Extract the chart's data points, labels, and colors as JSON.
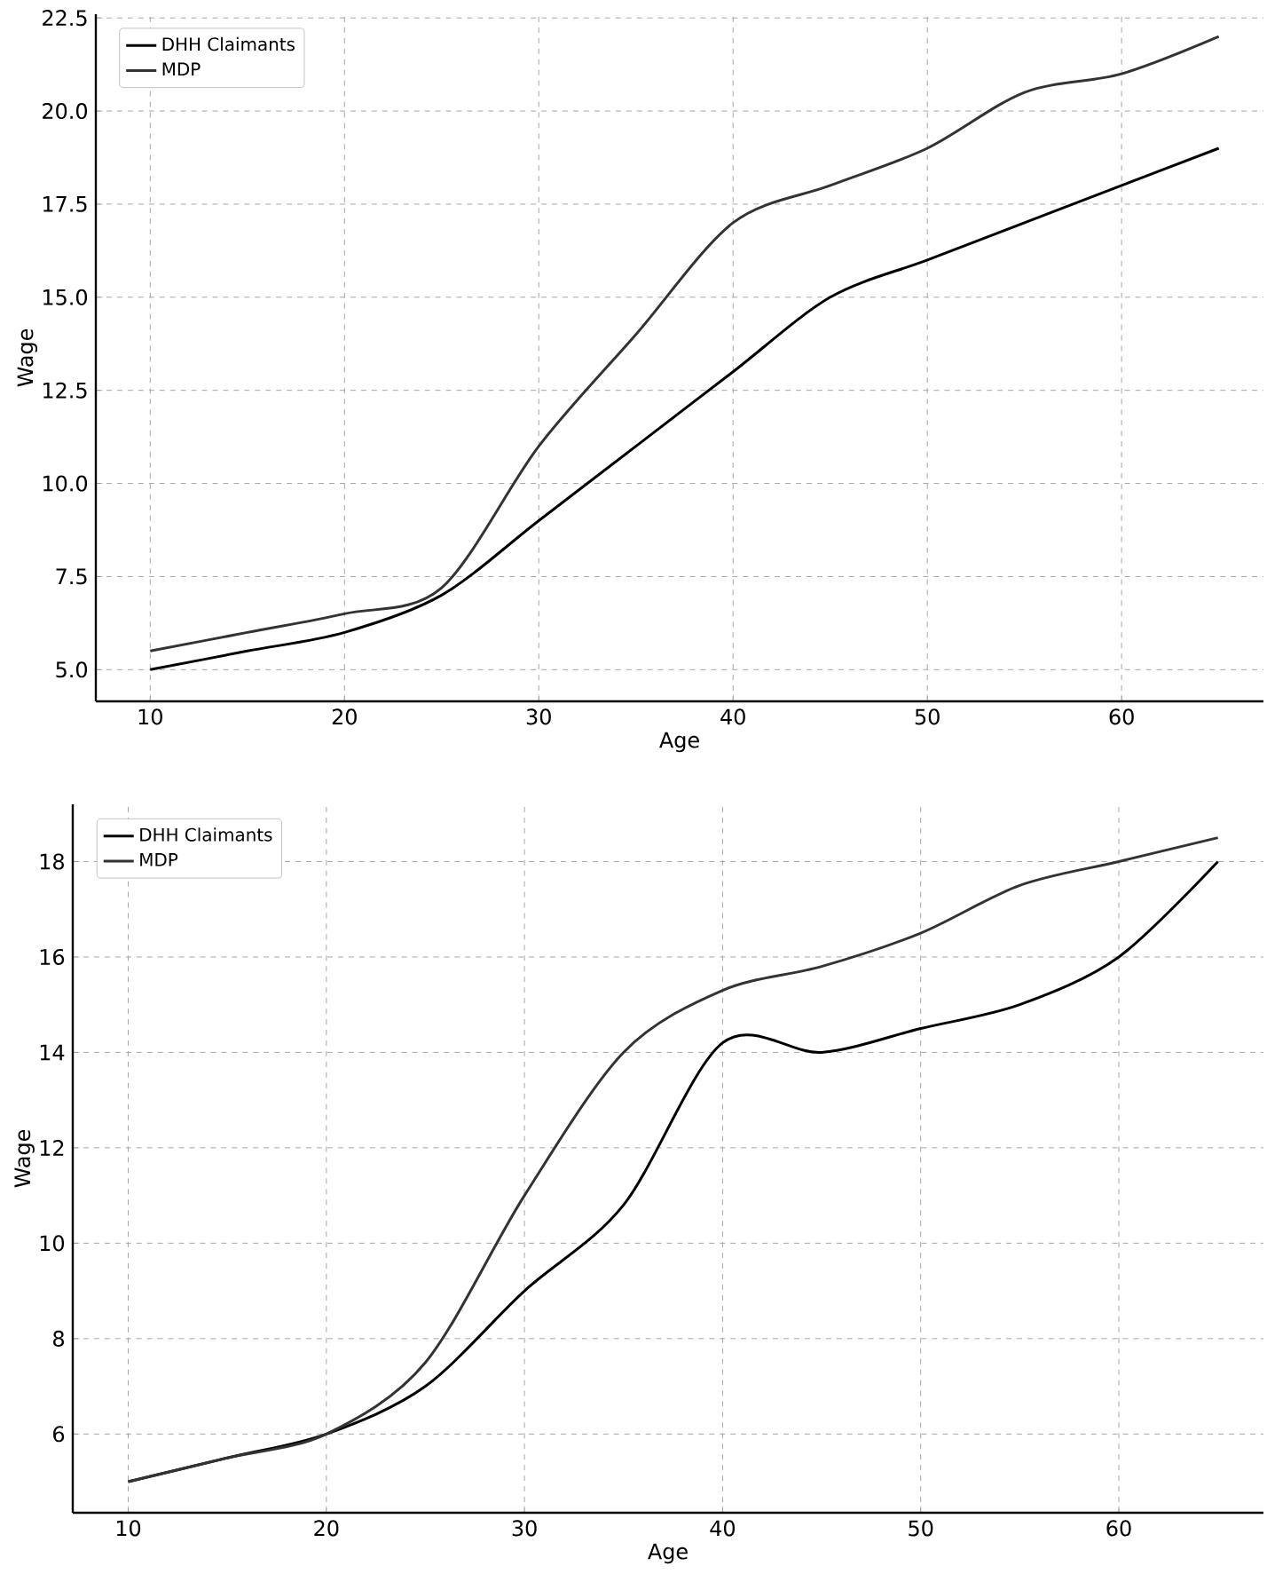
{
  "chart_data": [
    {
      "type": "line",
      "xlabel": "Age",
      "ylabel": "Wage",
      "x": [
        10,
        15,
        20,
        25,
        30,
        35,
        40,
        45,
        50,
        55,
        60,
        65
      ],
      "series": [
        {
          "name": "DHH Claimants",
          "color": "#000000",
          "values": [
            5,
            5.5,
            6,
            7,
            9,
            11,
            13,
            15,
            16,
            17,
            18,
            19
          ]
        },
        {
          "name": "MDP",
          "color": "#333333",
          "values": [
            5.5,
            6,
            6.5,
            7.2,
            11,
            14,
            17,
            18,
            19,
            20.5,
            21,
            22
          ]
        }
      ],
      "xlim": [
        7.2,
        67.3
      ],
      "ylim": [
        4.15,
        22.6
      ],
      "xticks": [
        10,
        20,
        30,
        40,
        50,
        60
      ],
      "yticks": [
        {
          "value": 5,
          "label": "5.0"
        },
        {
          "value": 7.5,
          "label": "7.5"
        },
        {
          "value": 10,
          "label": "10.0"
        },
        {
          "value": 12.5,
          "label": "12.5"
        },
        {
          "value": 15,
          "label": "15.0"
        },
        {
          "value": 17.5,
          "label": "17.5"
        },
        {
          "value": 20,
          "label": "20.0"
        },
        {
          "value": 22.5,
          "label": "22.5"
        }
      ],
      "grid": true,
      "legend": "top left",
      "line_style": "solid",
      "marker": "none"
    },
    {
      "type": "line",
      "xlabel": "Age",
      "ylabel": "Wage",
      "x": [
        10,
        15,
        20,
        25,
        30,
        35,
        40,
        45,
        50,
        55,
        60,
        65
      ],
      "series": [
        {
          "name": "DHH Claimants",
          "color": "#000000",
          "values": [
            5,
            5.5,
            6,
            7,
            9,
            10.8,
            14.2,
            14,
            14.5,
            15,
            16,
            18
          ]
        },
        {
          "name": "MDP",
          "color": "#333333",
          "values": [
            5,
            5.5,
            6,
            7.5,
            11,
            14,
            15.3,
            15.8,
            16.5,
            17.5,
            18,
            18.5
          ]
        }
      ],
      "xlim": [
        7.2,
        67.3
      ],
      "ylim": [
        4.35,
        19.2
      ],
      "xticks": [
        10,
        20,
        30,
        40,
        50,
        60
      ],
      "yticks": [
        6,
        8,
        10,
        12,
        14,
        16,
        18
      ],
      "grid": true,
      "legend": "top left",
      "line_style": "solid",
      "marker": "none"
    }
  ]
}
